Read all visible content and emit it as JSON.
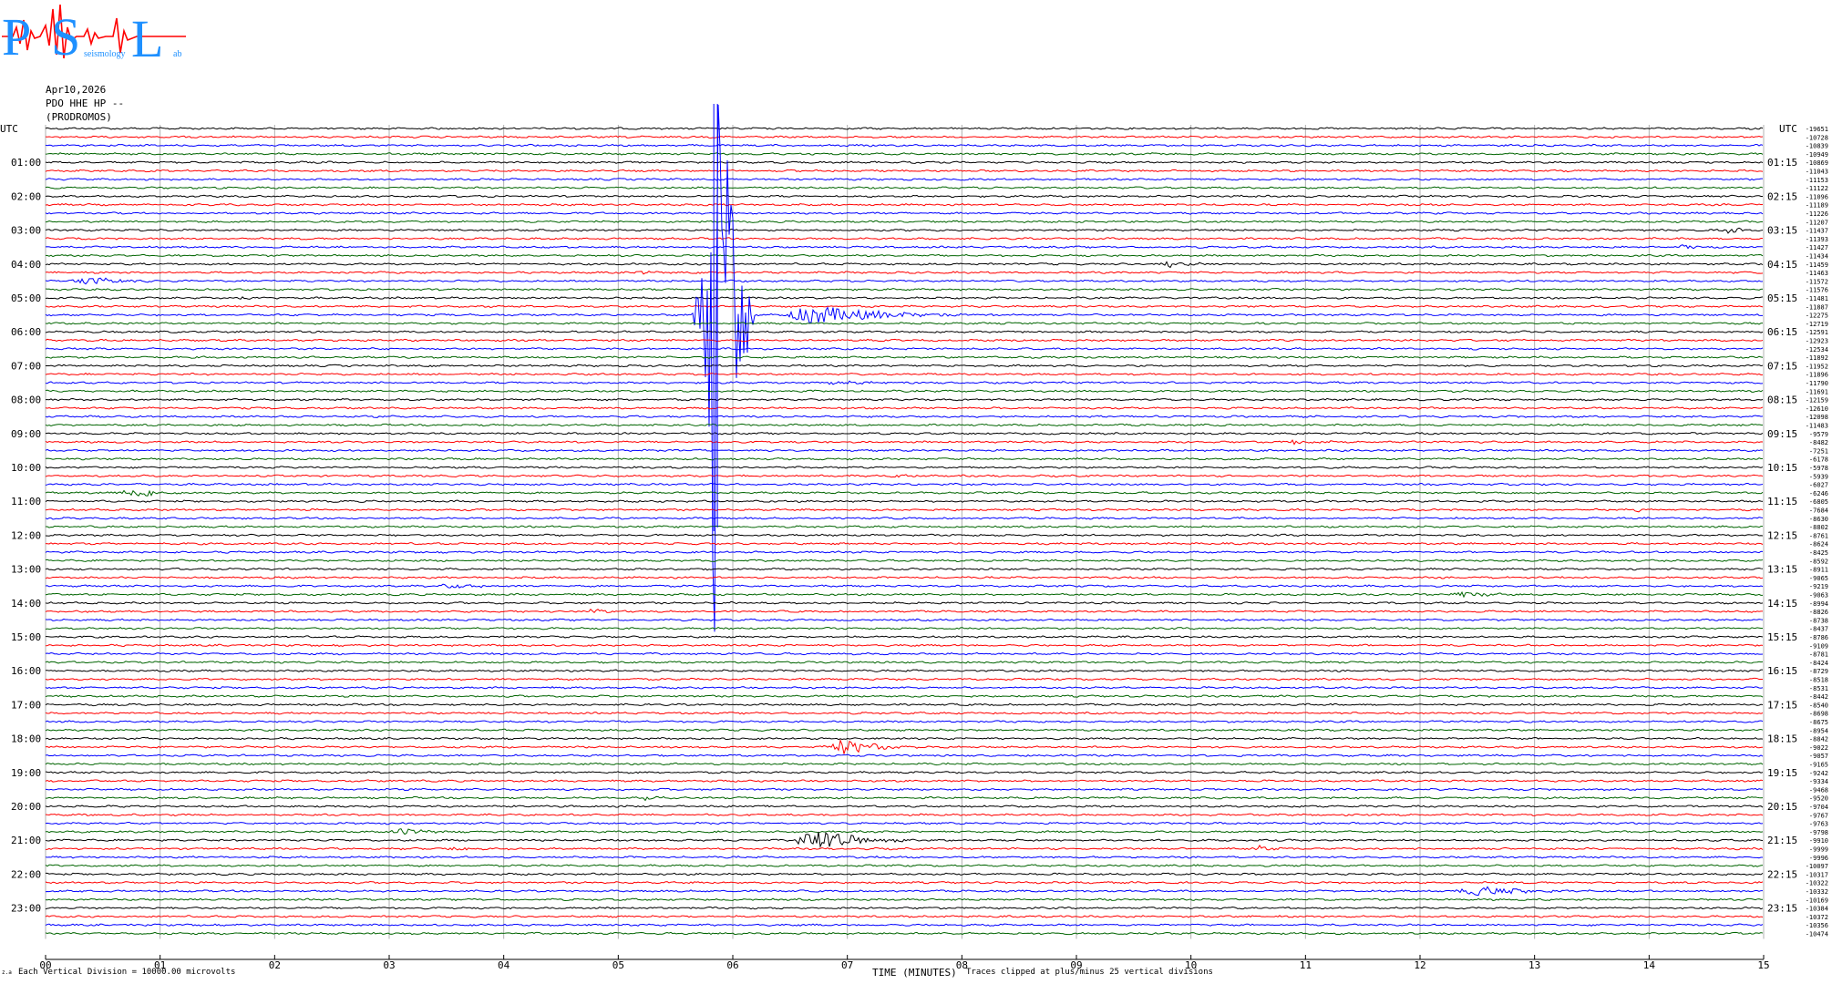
{
  "logo": {
    "big_letters": [
      "P",
      "S",
      "L"
    ],
    "small_words": [
      "seismology",
      "ab"
    ]
  },
  "header": {
    "date": "Apr10,2026",
    "station": "PDO HHE HP --",
    "site": "(PRODROMOS)"
  },
  "chart_data": {
    "type": "helicorder",
    "left_axis_title": "UTC",
    "right_axis_title": "UTC",
    "left_hour_labels": [
      "01:00",
      "02:00",
      "03:00",
      "04:00",
      "05:00",
      "06:00",
      "07:00",
      "08:00",
      "09:00",
      "10:00",
      "11:00",
      "12:00",
      "13:00",
      "14:00",
      "15:00",
      "16:00",
      "17:00",
      "18:00",
      "19:00",
      "20:00",
      "21:00",
      "22:00",
      "23:00"
    ],
    "right_hour_labels": [
      "01:15",
      "02:15",
      "03:15",
      "04:15",
      "05:15",
      "06:15",
      "07:15",
      "08:15",
      "09:15",
      "10:15",
      "11:15",
      "12:15",
      "13:15",
      "14:15",
      "15:15",
      "16:15",
      "17:15",
      "18:15",
      "19:15",
      "20:15",
      "21:15",
      "22:15",
      "23:15"
    ],
    "x_tick_labels": [
      "00",
      "01",
      "02",
      "03",
      "04",
      "05",
      "06",
      "07",
      "08",
      "09",
      "10",
      "11",
      "12",
      "13",
      "14",
      "15"
    ],
    "xlabel": "TIME (MINUTES)",
    "minutes_per_trace": 15,
    "trace_colors": [
      "#000000",
      "#ff0000",
      "#0000ff",
      "#006400"
    ],
    "trace_offsets": [
      -19651,
      -10728,
      -10839,
      -10949,
      -10869,
      -11043,
      -11153,
      -11122,
      -11096,
      -11189,
      -11226,
      -11207,
      -11437,
      -11393,
      -11427,
      -11434,
      -11459,
      -11463,
      -11572,
      -11576,
      -11481,
      -11887,
      -12275,
      -12719,
      -12591,
      -12923,
      -12534,
      -11892,
      -11952,
      -11896,
      -11790,
      -11691,
      -12159,
      -12610,
      -12098,
      -11483,
      -9579,
      -8482,
      -7251,
      -6178,
      -5978,
      -5939,
      -6027,
      -6246,
      -6805,
      -7684,
      -8630,
      -8802,
      -8761,
      -8624,
      -8425,
      -8592,
      -8911,
      -9065,
      -9219,
      -9063,
      -8994,
      -8826,
      -8738,
      -8437,
      -8786,
      -9109,
      -8781,
      -8424,
      -8729,
      -8518,
      -8531,
      -8442,
      -8540,
      -8698,
      -8675,
      -8954,
      -8842,
      -9022,
      -9057,
      -9165,
      -9242,
      -9334,
      -9468,
      -9520,
      -9704,
      -9767,
      -9763,
      -9798,
      -9910,
      -9999,
      -9996,
      -10097,
      -10317,
      -10322,
      -10332,
      -10169,
      -10384,
      -10372,
      -10356,
      -10474
    ],
    "events": [
      {
        "trace": 12,
        "minute": 14.7,
        "width": 0.25,
        "amp": 0.45
      },
      {
        "trace": 14,
        "minute": 14.3,
        "width": 0.2,
        "amp": 0.3
      },
      {
        "trace": 16,
        "minute": 9.8,
        "width": 0.6,
        "amp": 0.4
      },
      {
        "trace": 17,
        "minute": 5.2,
        "width": 0.3,
        "amp": 0.2
      },
      {
        "trace": 18,
        "minute": 0.35,
        "width": 0.8,
        "amp": 0.55
      },
      {
        "trace": 20,
        "minute": 1.7,
        "width": 0.3,
        "amp": 0.25
      },
      {
        "trace": 22,
        "minute": 5.85,
        "width": 0.12,
        "amp": 95,
        "main": true
      },
      {
        "trace": 22,
        "minute": 6.7,
        "width": 1.6,
        "amp": 1.2
      },
      {
        "trace": 30,
        "minute": 6.9,
        "width": 0.5,
        "amp": 0.3
      },
      {
        "trace": 37,
        "minute": 10.9,
        "width": 0.4,
        "amp": 0.35
      },
      {
        "trace": 41,
        "minute": 7.4,
        "width": 0.4,
        "amp": 0.25
      },
      {
        "trace": 43,
        "minute": 0.75,
        "width": 0.9,
        "amp": 0.55
      },
      {
        "trace": 45,
        "minute": 13.9,
        "width": 0.2,
        "amp": 0.3
      },
      {
        "trace": 54,
        "minute": 3.5,
        "width": 0.6,
        "amp": 0.35
      },
      {
        "trace": 55,
        "minute": 12.35,
        "width": 0.6,
        "amp": 0.4
      },
      {
        "trace": 56,
        "minute": 6.0,
        "width": 0.3,
        "amp": 0.2
      },
      {
        "trace": 57,
        "minute": 4.8,
        "width": 0.5,
        "amp": 0.25
      },
      {
        "trace": 73,
        "minute": 6.95,
        "width": 0.8,
        "amp": 1.0
      },
      {
        "trace": 79,
        "minute": 5.25,
        "width": 0.25,
        "amp": 0.4
      },
      {
        "trace": 83,
        "minute": 3.1,
        "width": 0.5,
        "amp": 0.45
      },
      {
        "trace": 84,
        "minute": 6.7,
        "width": 0.9,
        "amp": 1.6
      },
      {
        "trace": 85,
        "minute": 3.6,
        "width": 0.6,
        "amp": 0.3
      },
      {
        "trace": 85,
        "minute": 10.6,
        "width": 0.5,
        "amp": 0.35
      },
      {
        "trace": 90,
        "minute": 12.5,
        "width": 1.0,
        "amp": 0.65
      }
    ]
  },
  "footer": {
    "tiny_mark": "z.a",
    "scale_note": "Each Vertical Division = 10000.00 microvolts",
    "clip_note": "Traces clipped at plus/minus 25 vertical divisions"
  }
}
